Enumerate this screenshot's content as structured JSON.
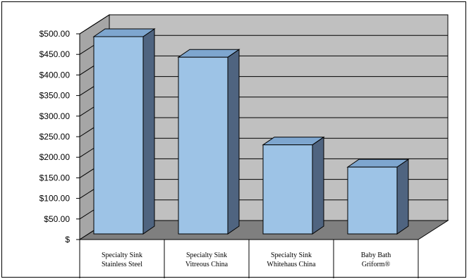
{
  "chart_data": {
    "type": "bar",
    "style": "3d-column",
    "categories": [
      [
        "Specialty Sink",
        "Stainless Steel"
      ],
      [
        "Specialty Sink",
        "Vitreous China"
      ],
      [
        "Specialty Sink",
        "Whitehaus China"
      ],
      [
        "Baby Bath",
        "Griform®"
      ]
    ],
    "values": [
      500,
      450,
      237,
      183
    ],
    "yticks": [
      "$",
      "$50.00",
      "$100.00",
      "$150.00",
      "$200.00",
      "$250.00",
      "$300.00",
      "$350.00",
      "$400.00",
      "$450.00",
      "$500.00"
    ],
    "ylim": [
      0,
      500
    ],
    "grid": true,
    "legend": "none",
    "colors": {
      "bar_front": "#9dc3e6",
      "bar_top": "#7ea6cf",
      "bar_side": "#4f6480",
      "back_wall": "#c0c0c0",
      "side_wall": "#a6a6a6",
      "floor": "#7f7f7f",
      "gridline": "#000000"
    }
  }
}
